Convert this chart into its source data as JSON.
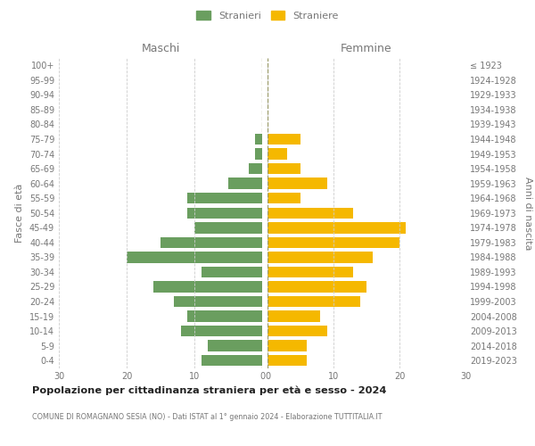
{
  "age_groups": [
    "0-4",
    "5-9",
    "10-14",
    "15-19",
    "20-24",
    "25-29",
    "30-34",
    "35-39",
    "40-44",
    "45-49",
    "50-54",
    "55-59",
    "60-64",
    "65-69",
    "70-74",
    "75-79",
    "80-84",
    "85-89",
    "90-94",
    "95-99",
    "100+"
  ],
  "birth_years": [
    "2019-2023",
    "2014-2018",
    "2009-2013",
    "2004-2008",
    "1999-2003",
    "1994-1998",
    "1989-1993",
    "1984-1988",
    "1979-1983",
    "1974-1978",
    "1969-1973",
    "1964-1968",
    "1959-1963",
    "1954-1958",
    "1949-1953",
    "1944-1948",
    "1939-1943",
    "1934-1938",
    "1929-1933",
    "1924-1928",
    "≤ 1923"
  ],
  "males": [
    9,
    8,
    12,
    11,
    13,
    16,
    9,
    20,
    15,
    10,
    11,
    11,
    5,
    2,
    1,
    1,
    0,
    0,
    0,
    0,
    0
  ],
  "females": [
    6,
    6,
    9,
    8,
    14,
    15,
    13,
    16,
    20,
    21,
    13,
    5,
    9,
    5,
    3,
    5,
    0,
    0,
    0,
    0,
    0
  ],
  "male_color": "#6a9e5f",
  "female_color": "#f5b800",
  "background_color": "#ffffff",
  "grid_color": "#cccccc",
  "title": "Popolazione per cittadinanza straniera per età e sesso - 2024",
  "subtitle": "COMUNE DI ROMAGNANO SESIA (NO) - Dati ISTAT al 1° gennaio 2024 - Elaborazione TUTTITALIA.IT",
  "header_left": "Maschi",
  "header_right": "Femmine",
  "ylabel_left": "Fasce di età",
  "ylabel_right": "Anni di nascita",
  "legend_male": "Stranieri",
  "legend_female": "Straniere",
  "xlim": 30,
  "label_color": "#777777",
  "title_color": "#222222",
  "subtitle_color": "#777777",
  "center_line_color": "#999966",
  "grid_linestyle": "--",
  "bar_height": 0.75
}
